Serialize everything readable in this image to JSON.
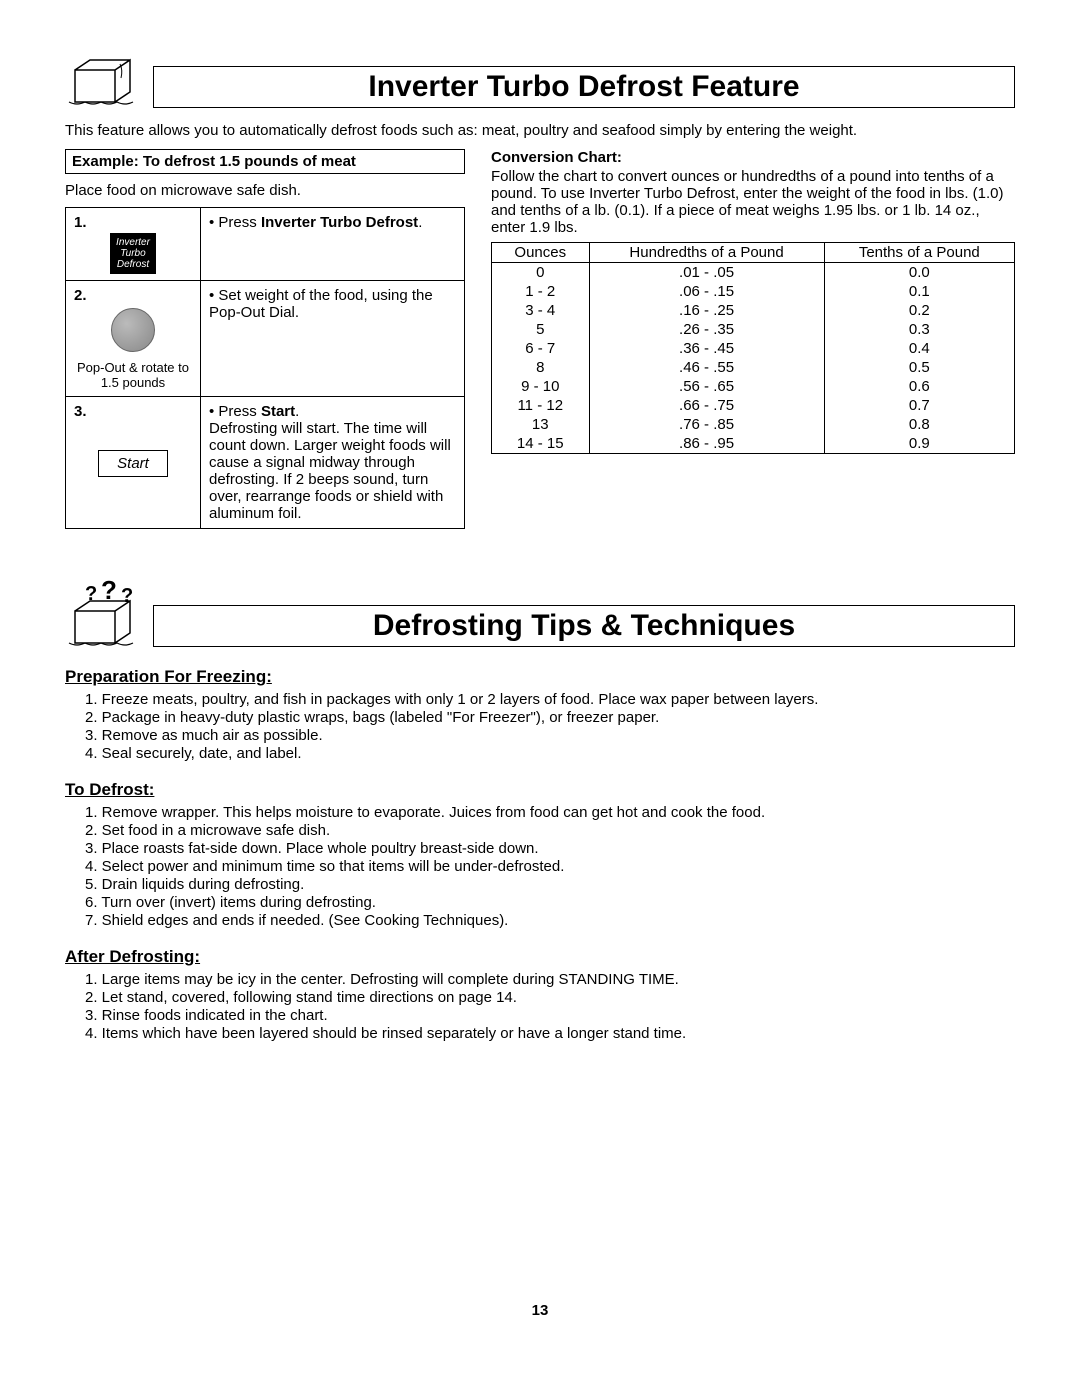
{
  "section1": {
    "title": "Inverter Turbo Defrost Feature",
    "intro": "This feature allows you to automatically defrost foods such as: meat, poultry and seafood simply by entering the weight.",
    "example_header": "Example: To defrost 1.5 pounds of meat",
    "place_food": "Place food on microwave safe dish.",
    "steps": [
      {
        "num": "1.",
        "btn_line1": "Inverter",
        "btn_line2": "Turbo",
        "btn_line3": "Defrost",
        "desc_prefix": "• Press ",
        "desc_bold": "Inverter Turbo Defrost",
        "desc_suffix": "."
      },
      {
        "num": "2.",
        "dial_label1": "Pop-Out & rotate to",
        "dial_label2": "1.5 pounds",
        "desc": "• Set weight of the food, using the Pop-Out Dial."
      },
      {
        "num": "3.",
        "start_label": "Start",
        "desc_prefix": "• Press ",
        "desc_bold": "Start",
        "desc_suffix": ".",
        "desc_rest": "Defrosting will start. The time will count down. Larger weight foods will cause a signal midway through defrosting. If 2 beeps sound, turn over, rearrange foods or shield with aluminum foil."
      }
    ],
    "conversion": {
      "title": "Conversion Chart:",
      "desc": "Follow the chart to convert ounces or hundredths of a pound into tenths of a pound. To use Inverter Turbo Defrost, enter the weight of the food in lbs. (1.0) and tenths of a lb. (0.1). If a piece of meat weighs 1.95 lbs. or 1 lb. 14 oz., enter 1.9 lbs.",
      "headers": [
        "Ounces",
        "Hundredths of a Pound",
        "Tenths of a Pound"
      ],
      "rows": [
        [
          "0",
          ".01 - .05",
          "0.0"
        ],
        [
          "1 - 2",
          ".06 - .15",
          "0.1"
        ],
        [
          "3 - 4",
          ".16 - .25",
          "0.2"
        ],
        [
          "5",
          ".26 - .35",
          "0.3"
        ],
        [
          "6 - 7",
          ".36 - .45",
          "0.4"
        ],
        [
          "8",
          ".46 - .55",
          "0.5"
        ],
        [
          "9 - 10",
          ".56 - .65",
          "0.6"
        ],
        [
          "11 - 12",
          ".66 - .75",
          "0.7"
        ],
        [
          "13",
          ".76 - .85",
          "0.8"
        ],
        [
          "14 - 15",
          ".86 - .95",
          "0.9"
        ]
      ]
    }
  },
  "section2": {
    "title": "Defrosting Tips & Techniques",
    "prep_head": "Preparation For Freezing:",
    "prep_items": [
      "1. Freeze meats, poultry, and fish in packages with only 1 or 2 layers of food. Place wax paper between layers.",
      "2. Package in heavy-duty plastic wraps, bags (labeled \"For Freezer\"), or freezer paper.",
      "3. Remove as much air as possible.",
      "4. Seal securely, date, and label."
    ],
    "defrost_head": "To Defrost:",
    "defrost_items": [
      "1. Remove wrapper. This helps moisture to evaporate. Juices from food can get hot and cook the food.",
      "2. Set food in a microwave safe dish.",
      "3. Place roasts fat-side down. Place whole poultry breast-side down.",
      "4. Select power and minimum time so that items will be under-defrosted.",
      "5. Drain liquids during defrosting.",
      "6. Turn over (invert) items during defrosting.",
      "7. Shield edges and ends if needed. (See Cooking Techniques)."
    ],
    "after_head": "After Defrosting:",
    "after_items": [
      "1. Large items may be icy in the center. Defrosting will complete during STANDING TIME.",
      "2. Let stand, covered, following stand time directions on page 14.",
      "3. Rinse foods indicated in the chart.",
      "4. Items which have been layered should be rinsed separately or have a longer stand time."
    ]
  },
  "page_number": "13"
}
